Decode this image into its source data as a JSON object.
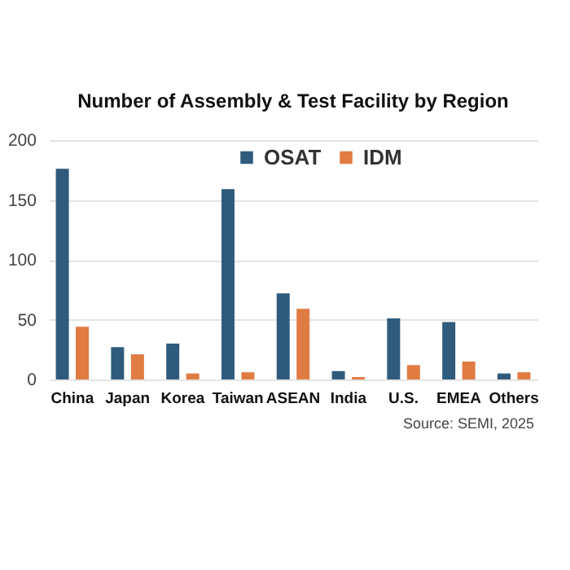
{
  "chart_data": {
    "type": "bar",
    "title": "Number of Assembly & Test Facility by Region",
    "categories": [
      "China",
      "Japan",
      "Korea",
      "Taiwan",
      "ASEAN",
      "India",
      "U.S.",
      "EMEA",
      "Others"
    ],
    "series": [
      {
        "name": "OSAT",
        "color": "#2f5b7c",
        "values": [
          176,
          27,
          30,
          159,
          72,
          7,
          51,
          48,
          5
        ]
      },
      {
        "name": "IDM",
        "color": "#e07b42",
        "values": [
          44,
          21,
          5,
          6,
          59,
          2,
          12,
          15,
          6
        ]
      }
    ],
    "ylim": [
      0,
      200
    ],
    "yticks": [
      0,
      50,
      100,
      150,
      200
    ],
    "grid": "y",
    "legend": "top",
    "annotations": [
      "Source: SEMI, 2025"
    ]
  }
}
